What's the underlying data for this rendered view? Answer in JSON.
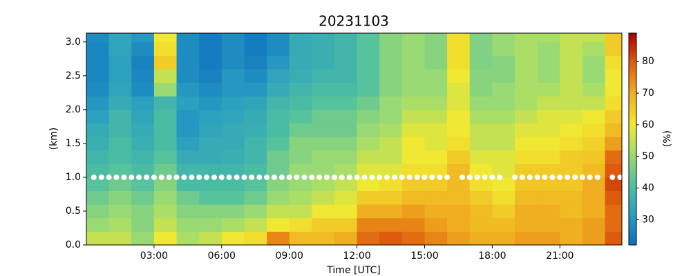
{
  "chart_data": {
    "type": "heatmap",
    "title": "20231103",
    "xlabel": "Time [UTC]",
    "ylabel": "(km)",
    "colorbar_label": "(%)",
    "xlim": [
      0,
      23.75
    ],
    "ylim": [
      0,
      3.13
    ],
    "zlim": [
      22,
      89
    ],
    "xticks": [
      {
        "value": 3,
        "label": "03:00"
      },
      {
        "value": 6,
        "label": "06:00"
      },
      {
        "value": 9,
        "label": "09:00"
      },
      {
        "value": 12,
        "label": "12:00"
      },
      {
        "value": 15,
        "label": "15:00"
      },
      {
        "value": 18,
        "label": "18:00"
      },
      {
        "value": 21,
        "label": "21:00"
      }
    ],
    "yticks": [
      {
        "value": 0,
        "label": "0.0"
      },
      0.5,
      {
        "value": 1,
        "label": "1.0"
      },
      1.5,
      {
        "value": 2,
        "label": "2.0"
      },
      2.5,
      {
        "value": 3,
        "label": "3.0"
      }
    ],
    "zticks": [
      30,
      40,
      50,
      60,
      70,
      80
    ],
    "colormap": [
      "#0b6dbf",
      "#2a9fc0",
      "#4fc0a0",
      "#9fdc70",
      "#f2e830",
      "#f0b020",
      "#e06010",
      "#b00000"
    ],
    "x_edges": [
      0,
      1,
      2,
      3,
      4,
      5,
      6,
      7,
      8,
      9,
      10,
      11,
      12,
      13,
      14,
      15,
      16,
      17,
      18,
      19,
      20,
      21,
      22,
      23,
      24
    ],
    "y_edges": [
      0,
      0.2,
      0.4,
      0.6,
      0.8,
      1.0,
      1.2,
      1.4,
      1.6,
      1.8,
      2.0,
      2.2,
      2.4,
      2.6,
      2.8,
      3.0,
      3.2
    ],
    "z": [
      [
        55,
        50,
        48,
        45,
        42,
        40,
        38,
        36,
        35,
        32,
        30,
        28,
        27,
        27,
        27,
        28
      ],
      [
        55,
        52,
        50,
        48,
        45,
        42,
        40,
        40,
        38,
        38,
        35,
        33,
        32,
        32,
        33,
        33
      ],
      [
        50,
        48,
        48,
        45,
        42,
        40,
        38,
        36,
        35,
        33,
        32,
        28,
        27,
        26,
        28,
        30
      ],
      [
        60,
        55,
        52,
        50,
        48,
        45,
        42,
        40,
        40,
        40,
        38,
        50,
        55,
        65,
        62,
        60
      ],
      [
        52,
        50,
        48,
        45,
        40,
        38,
        35,
        32,
        30,
        30,
        32,
        30,
        28,
        28,
        28,
        28
      ],
      [
        55,
        50,
        48,
        42,
        40,
        38,
        35,
        35,
        33,
        32,
        30,
        28,
        26,
        25,
        25,
        25
      ],
      [
        60,
        52,
        48,
        42,
        40,
        38,
        36,
        35,
        35,
        33,
        32,
        30,
        30,
        28,
        28,
        28
      ],
      [
        62,
        55,
        50,
        45,
        42,
        40,
        38,
        38,
        36,
        35,
        33,
        30,
        28,
        26,
        25,
        25
      ],
      [
        75,
        60,
        55,
        50,
        48,
        45,
        45,
        42,
        40,
        40,
        38,
        35,
        33,
        30,
        28,
        28
      ],
      [
        68,
        62,
        55,
        52,
        50,
        50,
        48,
        48,
        45,
        42,
        40,
        38,
        36,
        35,
        35,
        35
      ],
      [
        68,
        65,
        60,
        55,
        52,
        50,
        50,
        48,
        45,
        45,
        42,
        40,
        38,
        36,
        36,
        36
      ],
      [
        70,
        65,
        60,
        58,
        55,
        52,
        50,
        48,
        45,
        45,
        42,
        40,
        38,
        38,
        38,
        38
      ],
      [
        78,
        75,
        70,
        65,
        60,
        58,
        55,
        52,
        50,
        48,
        45,
        42,
        42,
        42,
        42,
        42
      ],
      [
        80,
        75,
        70,
        65,
        62,
        58,
        55,
        55,
        52,
        50,
        50,
        48,
        48,
        48,
        48,
        48
      ],
      [
        78,
        75,
        72,
        68,
        65,
        62,
        60,
        60,
        58,
        55,
        52,
        50,
        50,
        50,
        50,
        50
      ],
      [
        75,
        72,
        70,
        68,
        65,
        62,
        60,
        58,
        58,
        55,
        52,
        50,
        50,
        48,
        48,
        48
      ],
      [
        72,
        70,
        70,
        68,
        68,
        68,
        65,
        62,
        60,
        60,
        58,
        58,
        60,
        62,
        62,
        62
      ],
      [
        70,
        68,
        68,
        65,
        62,
        60,
        58,
        55,
        55,
        52,
        50,
        48,
        48,
        47,
        47,
        47
      ],
      [
        70,
        68,
        65,
        62,
        60,
        58,
        58,
        55,
        55,
        52,
        50,
        50,
        48,
        48,
        50,
        50
      ],
      [
        72,
        70,
        70,
        68,
        66,
        65,
        62,
        60,
        58,
        55,
        52,
        52,
        52,
        52,
        52,
        52
      ],
      [
        72,
        70,
        70,
        68,
        66,
        65,
        62,
        60,
        58,
        58,
        55,
        52,
        50,
        50,
        50,
        52
      ],
      [
        70,
        70,
        68,
        68,
        66,
        65,
        65,
        62,
        60,
        58,
        55,
        55,
        55,
        55,
        55,
        55
      ],
      [
        72,
        72,
        70,
        70,
        70,
        68,
        66,
        64,
        62,
        60,
        55,
        52,
        50,
        50,
        52,
        55
      ],
      [
        80,
        78,
        78,
        80,
        82,
        80,
        78,
        72,
        68,
        65,
        62,
        60,
        60,
        62,
        65,
        65
      ]
    ],
    "points": {
      "color": "#ffffff",
      "x": [
        0.33,
        0.67,
        1.0,
        1.33,
        1.67,
        2.0,
        2.33,
        2.67,
        3.0,
        3.33,
        3.67,
        4.0,
        4.33,
        4.67,
        5.0,
        5.33,
        5.67,
        6.0,
        6.33,
        6.67,
        7.0,
        7.33,
        7.67,
        8.0,
        8.33,
        8.67,
        9.0,
        9.33,
        9.67,
        10.0,
        10.33,
        10.67,
        11.0,
        11.33,
        11.67,
        12.0,
        12.33,
        12.67,
        13.0,
        13.33,
        13.67,
        14.0,
        14.33,
        14.67,
        15.0,
        15.33,
        15.67,
        16.0,
        16.67,
        17.0,
        17.33,
        17.67,
        18.0,
        18.33,
        19.0,
        19.33,
        19.67,
        20.0,
        20.33,
        20.67,
        21.0,
        21.33,
        21.67,
        22.0,
        22.33,
        22.67,
        23.33,
        23.67
      ],
      "values": [
        1.0,
        1.0,
        1.0,
        1.0,
        1.0,
        1.0,
        1.0,
        1.0,
        1.0,
        1.0,
        1.0,
        1.0,
        1.0,
        1.0,
        1.0,
        1.0,
        1.0,
        1.0,
        1.0,
        1.0,
        1.0,
        1.0,
        1.0,
        1.0,
        1.0,
        1.0,
        1.0,
        1.0,
        1.0,
        1.0,
        1.0,
        1.0,
        1.0,
        1.0,
        1.0,
        1.0,
        1.0,
        1.0,
        1.0,
        1.0,
        1.0,
        1.0,
        1.0,
        1.0,
        1.0,
        1.0,
        1.0,
        1.0,
        1.0,
        1.0,
        1.0,
        1.0,
        1.0,
        1.0,
        1.0,
        1.0,
        1.0,
        1.0,
        1.0,
        1.0,
        1.0,
        1.0,
        1.0,
        1.0,
        1.0,
        1.0,
        1.0,
        1.0
      ]
    }
  }
}
